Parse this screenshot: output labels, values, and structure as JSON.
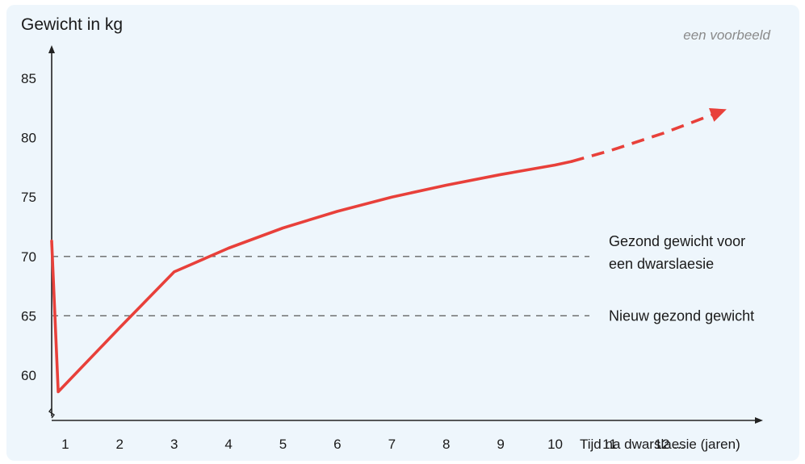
{
  "chart_data": {
    "type": "line",
    "ylabel": "Gewicht in kg",
    "xlabel": "Tijd na dwarslaesie (jaren)",
    "note": "een voorbeeld",
    "yticks": [
      "60",
      "65",
      "70",
      "75",
      "80",
      "85"
    ],
    "xticks": [
      "1",
      "2",
      "3",
      "4",
      "5",
      "6",
      "7",
      "8",
      "9",
      "10",
      "11",
      "12 ..."
    ],
    "ylim": [
      57,
      88
    ],
    "xlim": [
      0.75,
      13.3
    ],
    "grid": false,
    "series": [
      {
        "style": "solid",
        "color": "#e8403a",
        "points": [
          [
            0.75,
            71.3
          ],
          [
            0.87,
            58.6
          ],
          [
            2.0,
            64.0
          ],
          [
            3.0,
            68.7
          ],
          [
            3.3,
            69.3
          ],
          [
            4.0,
            70.7
          ],
          [
            5.0,
            72.4
          ],
          [
            6.0,
            73.8
          ],
          [
            7.0,
            75.0
          ],
          [
            8.0,
            76.0
          ],
          [
            9.0,
            76.9
          ],
          [
            10.0,
            77.7
          ],
          [
            10.3,
            78.0
          ]
        ]
      },
      {
        "style": "dashed",
        "color": "#e8403a",
        "arrow": true,
        "points": [
          [
            10.3,
            78.0
          ],
          [
            11.0,
            78.9
          ],
          [
            12.0,
            80.4
          ],
          [
            13.15,
            82.4
          ]
        ]
      }
    ],
    "reference_lines": [
      {
        "y": 70,
        "label_lines": [
          "Gezond gewicht voor",
          "een dwarslaesie"
        ]
      },
      {
        "y": 65,
        "label_lines": [
          "Nieuw gezond gewicht"
        ]
      }
    ]
  },
  "colors": {
    "line": "#e8403a",
    "axis": "#222222",
    "reference": "#666666",
    "background": "#eef6fc"
  }
}
